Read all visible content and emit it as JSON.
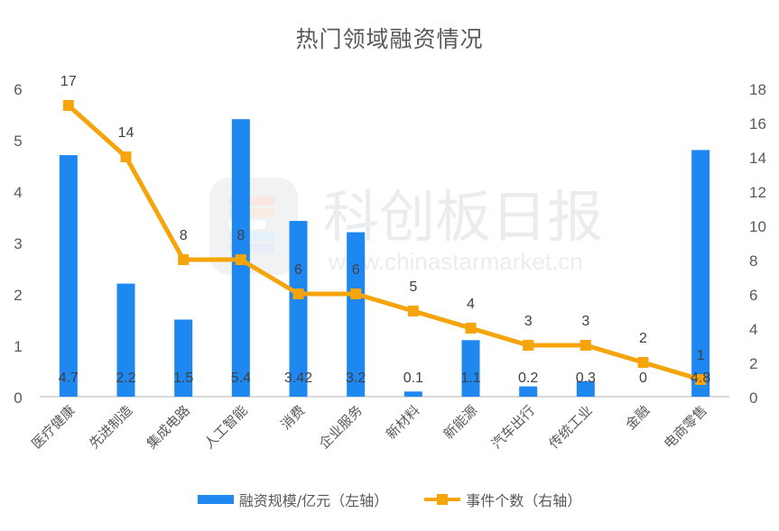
{
  "chart_data": {
    "type": "bar+line",
    "title": "热门领域融资情况",
    "categories": [
      "医疗健康",
      "先进制造",
      "集成电路",
      "人工智能",
      "消费",
      "企业服务",
      "新材料",
      "新能源",
      "汽车出行",
      "传统工业",
      "金融",
      "电商零售"
    ],
    "series": [
      {
        "name": "融资规模/亿元（左轴）",
        "type": "bar",
        "axis": "left",
        "color": "#1e87f0",
        "values": [
          4.7,
          2.2,
          1.5,
          5.4,
          3.42,
          3.2,
          0.1,
          1.1,
          0.2,
          0.3,
          0,
          4.8
        ],
        "labels": [
          "4.7",
          "2.2",
          "1.5",
          "5.4",
          "3.42",
          "3.2",
          "0.1",
          "1.1",
          "0.2",
          "0.3",
          "0",
          "4.8"
        ]
      },
      {
        "name": "事件个数（右轴）",
        "type": "line",
        "axis": "right",
        "color": "#f5a40c",
        "marker": "square",
        "values": [
          17,
          14,
          8,
          8,
          6,
          6,
          5,
          4,
          3,
          3,
          2,
          1
        ],
        "labels": [
          "17",
          "14",
          "8",
          "8",
          "6",
          "6",
          "5",
          "4",
          "3",
          "3",
          "2",
          "1"
        ]
      }
    ],
    "left_axis": {
      "ylim": [
        0,
        6
      ],
      "ticks": [
        "0",
        "1",
        "2",
        "3",
        "4",
        "5",
        "6"
      ]
    },
    "right_axis": {
      "ylim": [
        0,
        18
      ],
      "ticks": [
        "0",
        "2",
        "4",
        "6",
        "8",
        "10",
        "12",
        "14",
        "16",
        "18"
      ]
    },
    "grid": false,
    "legend_position": "bottom",
    "xlabel": "",
    "ylabel": ""
  },
  "watermark": {
    "name": "科创板日报",
    "url": "www.chinastarmarket.cn"
  },
  "legend": {
    "bar_label": "融资规模/亿元（左轴）",
    "line_label": "事件个数（右轴）"
  }
}
